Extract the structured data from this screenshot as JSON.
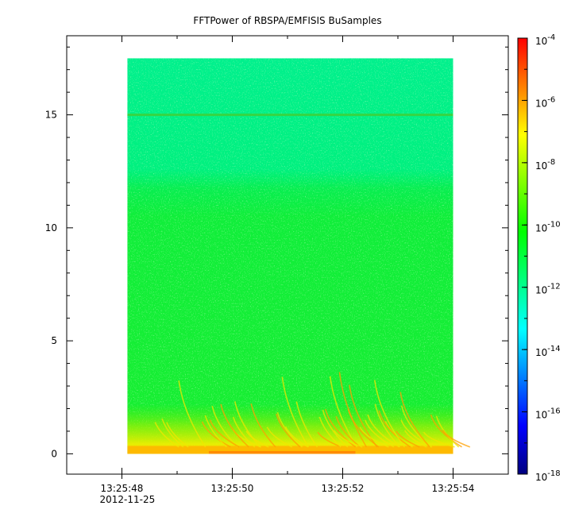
{
  "chart_data": {
    "type": "heatmap",
    "title": "FFTPower of RBSPA/EMFISIS  BuSamples",
    "xlabel": "",
    "ylabel": "",
    "x_tick_labels": [
      "13:25:48",
      "13:25:50",
      "13:25:52",
      "13:25:54"
    ],
    "x_tick_values_seconds": [
      48,
      50,
      52,
      54
    ],
    "x_date_label": "2012-11-25",
    "xlim": [
      "13:25:47.0",
      "13:25:55.0"
    ],
    "y_tick_labels": [
      "0",
      "5",
      "10",
      "15"
    ],
    "y_tick_values": [
      0,
      5,
      10,
      15
    ],
    "ylim": [
      -0.9,
      18.5
    ],
    "data_extent": {
      "x": [
        "13:25:48.1",
        "13:25:54.0"
      ],
      "y": [
        0,
        17.5
      ]
    },
    "colorbar": {
      "scale": "log",
      "range": [
        1e-18,
        0.0001
      ],
      "tick_bases": [
        "10",
        "10",
        "10",
        "10",
        "10",
        "10",
        "10",
        "10"
      ],
      "tick_exponents": [
        "-4",
        "-6",
        "-8",
        "-10",
        "-12",
        "-14",
        "-16",
        "-18"
      ],
      "colormap": [
        "#00007f",
        "#0000ff",
        "#007fff",
        "#00ffff",
        "#00ff7f",
        "#00ff00",
        "#7fff00",
        "#ffff00",
        "#ff7f00",
        "#ff0000"
      ]
    },
    "features": {
      "horizontal_line_y": 15,
      "background_power_low_freq": 1e-10,
      "background_power_high_freq": 1e-12,
      "transition_y": 12,
      "chorus_band_y": [
        0,
        4
      ]
    }
  }
}
